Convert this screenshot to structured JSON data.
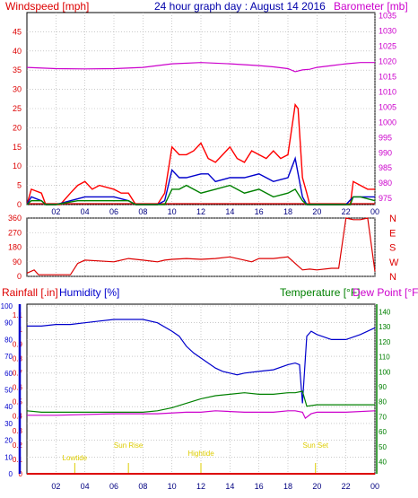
{
  "colors": {
    "windspeed": "#ff0000",
    "gust_avg": "#0000cc",
    "green_fill": "#008000",
    "barometer": "#cc00cc",
    "direction": "#dd0000",
    "rainfall": "#dd0000",
    "humidity": "#0000cc",
    "temperature": "#008000",
    "dewpoint": "#cc00cc",
    "event": "#ddcc00",
    "grid": "#aaaaaa"
  },
  "chart_data": [
    {
      "type": "line",
      "title": "24 hour graph day : August 14 2016",
      "left_axis_label": "Windspeed [mph]",
      "right_axis_label": "Barometer [mb]",
      "x_ticks": [
        "02",
        "04",
        "06",
        "08",
        "10",
        "12",
        "14",
        "16",
        "18",
        "20",
        "22",
        "00"
      ],
      "left_ticks": [
        0,
        5,
        10,
        15,
        20,
        25,
        30,
        35,
        40,
        45
      ],
      "left_range": [
        0,
        50
      ],
      "right_ticks": [
        975,
        980,
        985,
        990,
        995,
        1000,
        1005,
        1010,
        1015,
        1020,
        1025,
        1030,
        1035
      ],
      "right_range": [
        973,
        1036
      ],
      "grid": true,
      "series": [
        {
          "key": "windspeed",
          "hours": [
            0,
            0.3,
            1,
            1.3,
            1.5,
            2.3,
            3,
            3.5,
            4,
            4.5,
            5,
            6,
            6.5,
            7,
            7.5,
            8,
            8.5,
            9,
            9.5,
            10,
            10.5,
            11,
            11.5,
            12,
            12.5,
            13,
            13.5,
            14,
            14.5,
            15,
            15.5,
            16,
            16.5,
            17,
            17.5,
            18,
            18.5,
            18.7,
            19,
            19.3,
            19.5,
            20,
            21,
            22,
            22.3,
            22.5,
            23,
            23.5,
            24
          ],
          "values": [
            0,
            4,
            3,
            0,
            0,
            0,
            3,
            5,
            6,
            4,
            5,
            4,
            3,
            3,
            0,
            0,
            0,
            0,
            3,
            15,
            13,
            13,
            14,
            16,
            12,
            11,
            13,
            15,
            12,
            11,
            14,
            13,
            12,
            14,
            12,
            13,
            26,
            25,
            7,
            3,
            0,
            0,
            0,
            0,
            0,
            6,
            5,
            4,
            4
          ]
        },
        {
          "key": "gust_avg",
          "hours": [
            0,
            0.3,
            1,
            1.3,
            2,
            3,
            4,
            5,
            6,
            7,
            7.5,
            9,
            9.5,
            10,
            10.5,
            11,
            12,
            12.5,
            13,
            14,
            15,
            16,
            17,
            18,
            18.5,
            19,
            19.3,
            20,
            22,
            22.5,
            23,
            24
          ],
          "values": [
            0,
            2,
            1,
            0,
            0,
            1,
            2,
            2,
            2,
            1,
            0,
            0,
            1,
            9,
            7,
            7,
            8,
            8,
            6,
            7,
            7,
            8,
            6,
            7,
            12,
            2,
            0,
            0,
            0,
            2,
            2,
            2
          ]
        },
        {
          "key": "green_fill",
          "hours": [
            0,
            0.3,
            1,
            1.3,
            2,
            3.5,
            4,
            5,
            6,
            7,
            7.5,
            9.5,
            10,
            10.5,
            11,
            12,
            13,
            14,
            15,
            16,
            17,
            18,
            18.5,
            19,
            19.3,
            22.3,
            22.5,
            23,
            24
          ],
          "values": [
            0,
            1,
            1,
            0,
            0,
            1,
            1,
            1,
            1,
            1,
            0,
            0,
            4,
            4,
            5,
            3,
            4,
            5,
            3,
            4,
            2,
            3,
            4,
            1,
            0,
            0,
            2,
            2,
            1
          ]
        },
        {
          "key": "barometer",
          "hours": [
            0,
            2,
            4,
            6,
            8,
            10,
            12,
            14,
            16,
            17,
            18,
            18.5,
            19,
            19.5,
            20,
            21,
            22,
            23,
            24
          ],
          "values": [
            1018,
            1017.6,
            1017.5,
            1017.6,
            1018,
            1019.2,
            1019.6,
            1019.2,
            1018.6,
            1018.2,
            1017.6,
            1016.6,
            1017.2,
            1017.4,
            1018.0,
            1018.6,
            1019.2,
            1019.6,
            1019.6
          ]
        }
      ]
    },
    {
      "type": "line",
      "title": "",
      "left_ticks": [
        0,
        90,
        180,
        270,
        360
      ],
      "left_range": [
        0,
        360
      ],
      "right_labels": [
        "N",
        "W",
        "S",
        "E",
        "N"
      ],
      "x_ticks": [
        "02",
        "04",
        "06",
        "08",
        "10",
        "12",
        "14",
        "16",
        "18",
        "20",
        "22",
        "00"
      ],
      "grid": true,
      "series": [
        {
          "key": "direction",
          "hours": [
            0,
            0.5,
            0.8,
            1.5,
            3,
            3.5,
            4,
            5,
            6,
            7,
            8,
            9,
            9.5,
            10,
            11,
            12,
            13,
            14,
            15,
            15.5,
            16,
            17,
            18,
            18.5,
            19,
            19.5,
            20,
            21,
            21.5,
            22,
            22.5,
            23,
            23.5,
            24
          ],
          "values": [
            20,
            40,
            10,
            10,
            10,
            80,
            100,
            95,
            90,
            110,
            100,
            90,
            100,
            105,
            110,
            105,
            110,
            120,
            100,
            90,
            110,
            110,
            120,
            80,
            40,
            45,
            40,
            50,
            50,
            360,
            350,
            350,
            360,
            30
          ]
        }
      ]
    },
    {
      "type": "line",
      "title": "",
      "left_axis_label": "Rainfall [.in]",
      "left_axis_label2": "Humidity [%]",
      "right_axis_label": "Temperature [°F]",
      "right_axis_label2": "Dew Point [°F]",
      "humidity_ticks": [
        0,
        10,
        20,
        30,
        40,
        50,
        60,
        70,
        80,
        90,
        100
      ],
      "rain_ticks": [
        0,
        0.1,
        0.2,
        0.3,
        0.4,
        0.5,
        0.6,
        0.7,
        0.8,
        0.9,
        1,
        1.1
      ],
      "rain_range": [
        0,
        1.2
      ],
      "temp_ticks": [
        40,
        50,
        60,
        70,
        80,
        90,
        100,
        110,
        120,
        130,
        140
      ],
      "temp_range": [
        32,
        145
      ],
      "x_ticks": [
        "02",
        "04",
        "06",
        "08",
        "10",
        "12",
        "14",
        "16",
        "18",
        "20",
        "22",
        "00"
      ],
      "grid": true,
      "events": [
        {
          "label": "Lowtide",
          "hour": 3.3
        },
        {
          "label": "Sun Rise",
          "hour": 7
        },
        {
          "label": "Hightide",
          "hour": 12
        },
        {
          "label": "Sun Set",
          "hour": 19.9
        }
      ],
      "series": [
        {
          "key": "humidity",
          "hours": [
            0,
            1,
            2,
            3,
            4,
            5,
            6,
            7,
            8,
            9,
            10,
            10.5,
            11,
            11.5,
            12,
            12.5,
            13,
            13.5,
            14,
            14.5,
            15,
            16,
            17,
            18,
            18.5,
            18.8,
            19,
            19.3,
            19.6,
            20,
            21,
            22,
            23,
            24
          ],
          "values": [
            88,
            88,
            89,
            89,
            90,
            91,
            92,
            92,
            92,
            90,
            85,
            82,
            76,
            72,
            69,
            66,
            63,
            61,
            60,
            59,
            60,
            61,
            62,
            65,
            66,
            65,
            42,
            82,
            85,
            83,
            80,
            80,
            83,
            87
          ]
        },
        {
          "key": "rainfall",
          "hours": [
            0,
            24
          ],
          "values": [
            0,
            0
          ]
        },
        {
          "key": "temperature",
          "hours": [
            0,
            1,
            4,
            8,
            9,
            10,
            11,
            12,
            13,
            14,
            15,
            16,
            17,
            18,
            18.5,
            19,
            19.3,
            20,
            22,
            24
          ],
          "values": [
            74,
            73,
            73,
            73,
            74,
            76,
            79,
            82,
            84,
            85,
            86,
            85,
            85,
            86,
            86,
            87,
            77,
            78,
            78,
            78
          ]
        },
        {
          "key": "dewpoint",
          "hours": [
            0,
            2,
            6,
            9,
            11,
            12,
            13,
            15,
            17,
            18,
            18.5,
            19,
            19.2,
            19.6,
            20,
            22,
            24
          ],
          "values": [
            71,
            71,
            72,
            72,
            73,
            73,
            74,
            73,
            73,
            74,
            74,
            73,
            69,
            72,
            73,
            73,
            74
          ]
        }
      ]
    }
  ]
}
